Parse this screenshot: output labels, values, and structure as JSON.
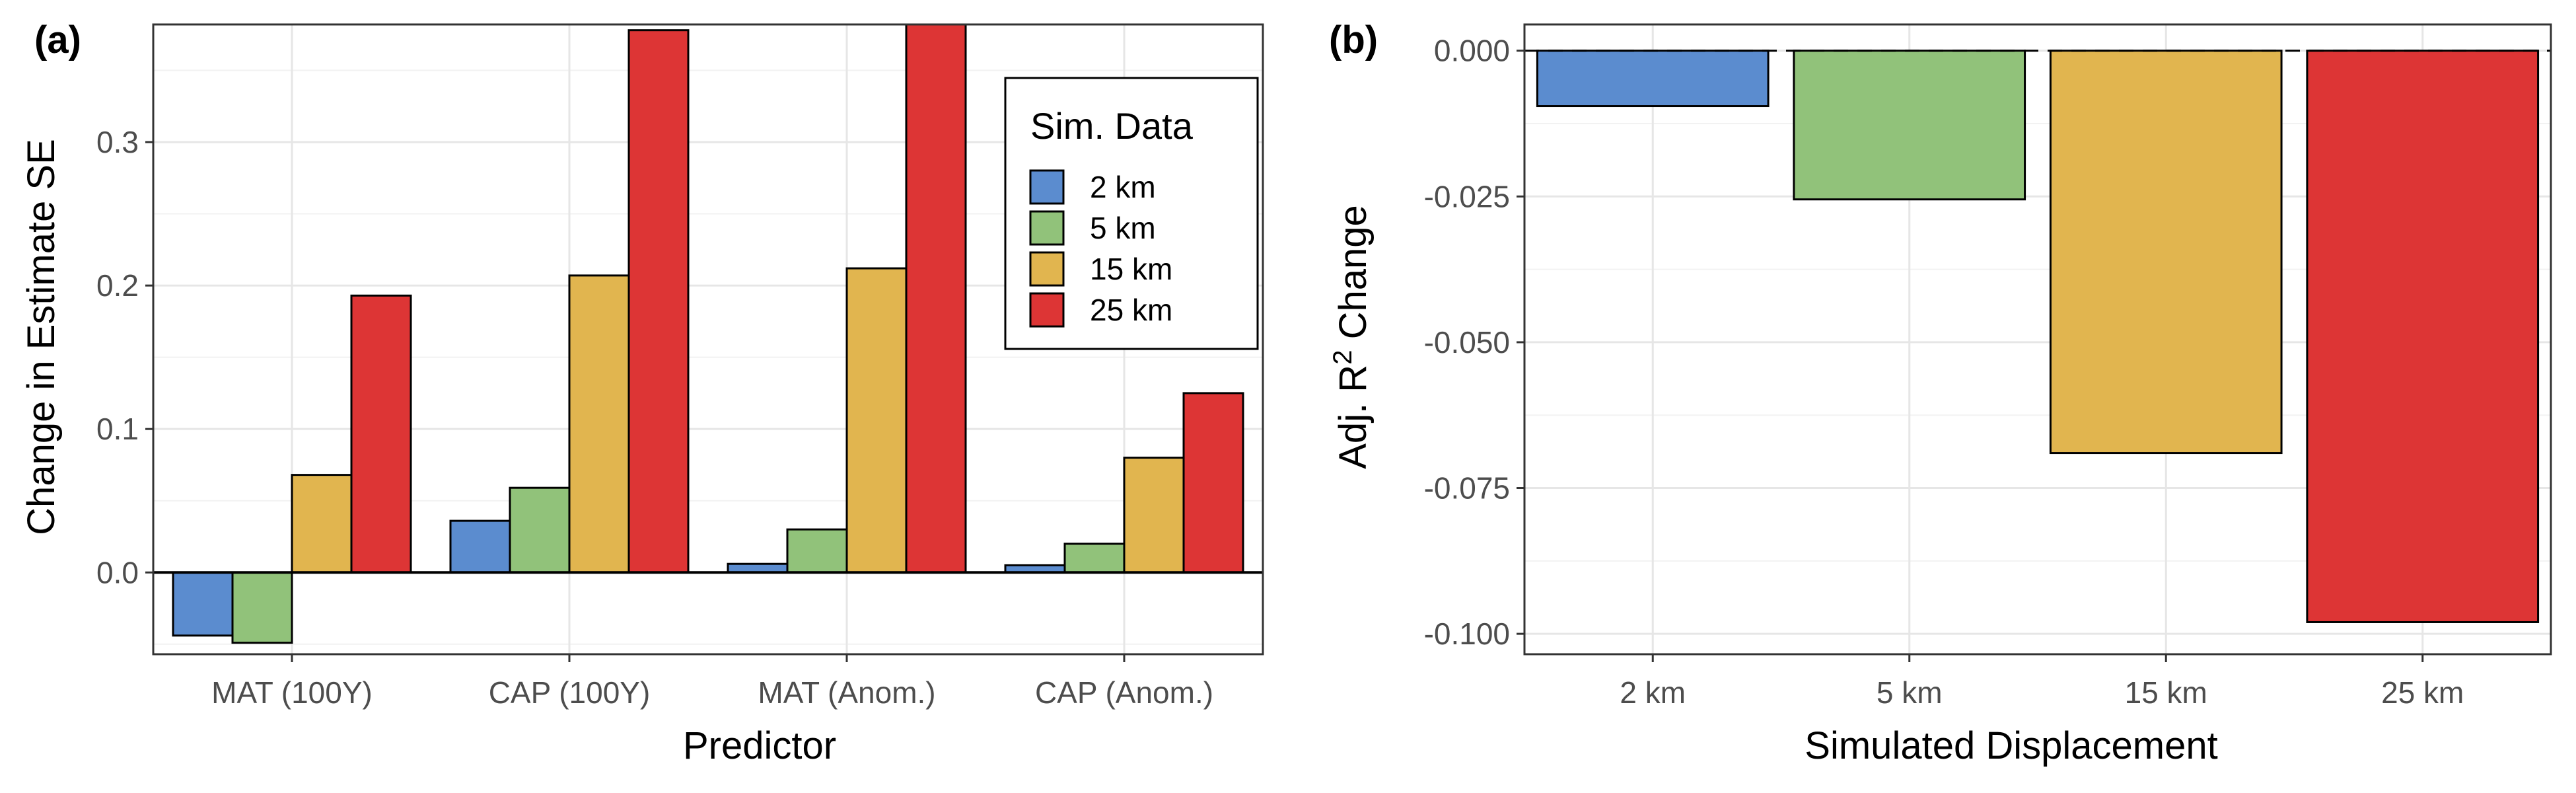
{
  "colors": {
    "2 km": "#5b8ccf",
    "5 km": "#91c27a",
    "15 km": "#e1b54f",
    "25 km": "#dd3535"
  },
  "chart_data": [
    {
      "panel_label": "(a)",
      "type": "bar",
      "xlabel": "Predictor",
      "ylabel": "Change in Estimate SE",
      "categories": [
        "MAT (100Y)",
        "CAP (100Y)",
        "MAT (Anom.)",
        "CAP (Anom.)"
      ],
      "ylim": [
        -0.057,
        0.382
      ],
      "yticks": [
        0.0,
        0.1,
        0.2,
        0.3
      ],
      "ytick_labels": [
        "0.0",
        "0.1",
        "0.2",
        "0.3"
      ],
      "grid": true,
      "legend": {
        "title": "Sim. Data",
        "placement": "top-right"
      },
      "series": [
        {
          "name": "2 km",
          "values": [
            -0.044,
            0.036,
            0.006,
            0.005
          ]
        },
        {
          "name": "5 km",
          "values": [
            -0.049,
            0.059,
            0.03,
            0.02
          ]
        },
        {
          "name": "15 km",
          "values": [
            0.068,
            0.207,
            0.212,
            0.08
          ]
        },
        {
          "name": "25 km",
          "values": [
            0.193,
            0.378,
            0.382,
            0.125
          ]
        }
      ]
    },
    {
      "panel_label": "(b)",
      "type": "bar",
      "xlabel": "Simulated Displacement",
      "ylabel": "Adj. R² Change",
      "ylabel_parts": [
        "Adj. R",
        "2",
        " Change"
      ],
      "categories": [
        "2 km",
        "5 km",
        "15 km",
        "25 km"
      ],
      "values": [
        -0.0095,
        -0.0255,
        -0.069,
        -0.098
      ],
      "ylim": [
        -0.1035,
        0.0045
      ],
      "yticks": [
        0.0,
        -0.025,
        -0.05,
        -0.075,
        -0.1
      ],
      "ytick_labels": [
        "0.000",
        "-0.025",
        "-0.050",
        "-0.075",
        "-0.100"
      ],
      "grid": true,
      "reference_line": 0.0
    }
  ]
}
